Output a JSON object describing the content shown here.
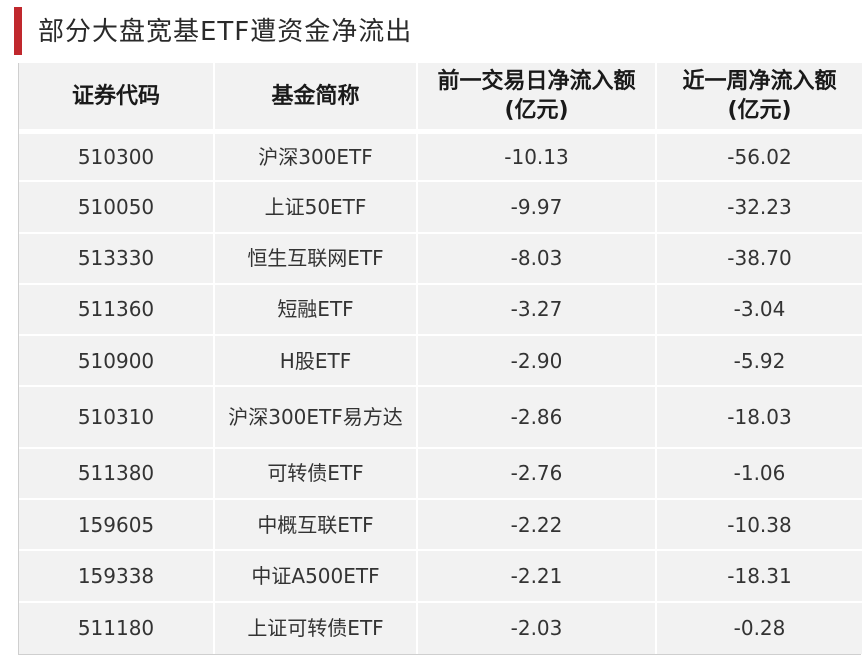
{
  "title": "部分大盘宽基ETF遭资金净流出",
  "accent_color": "#c0282d",
  "columns": [
    {
      "line1": "证券代码",
      "line2": ""
    },
    {
      "line1": "基金简称",
      "line2": ""
    },
    {
      "line1": "前一交易日净流入额",
      "line2": "(亿元)"
    },
    {
      "line1": "近一周净流入额",
      "line2": "(亿元)"
    }
  ],
  "rows": [
    {
      "code": "510300",
      "name": "沪深300ETF",
      "prev_day": "-10.13",
      "week": "-56.02"
    },
    {
      "code": "510050",
      "name": "上证50ETF",
      "prev_day": "-9.97",
      "week": "-32.23"
    },
    {
      "code": "513330",
      "name": "恒生互联网ETF",
      "prev_day": "-8.03",
      "week": "-38.70"
    },
    {
      "code": "511360",
      "name": "短融ETF",
      "prev_day": "-3.27",
      "week": "-3.04"
    },
    {
      "code": "510900",
      "name": "H股ETF",
      "prev_day": "-2.90",
      "week": "-5.92"
    },
    {
      "code": "510310",
      "name": "沪深300ETF易方达",
      "prev_day": "-2.86",
      "week": "-18.03"
    },
    {
      "code": "511380",
      "name": "可转债ETF",
      "prev_day": "-2.76",
      "week": "-1.06"
    },
    {
      "code": "159605",
      "name": "中概互联ETF",
      "prev_day": "-2.22",
      "week": "-10.38"
    },
    {
      "code": "159338",
      "name": "中证A500ETF",
      "prev_day": "-2.21",
      "week": "-18.31"
    },
    {
      "code": "511180",
      "name": "上证可转债ETF",
      "prev_day": "-2.03",
      "week": "-0.28"
    }
  ]
}
